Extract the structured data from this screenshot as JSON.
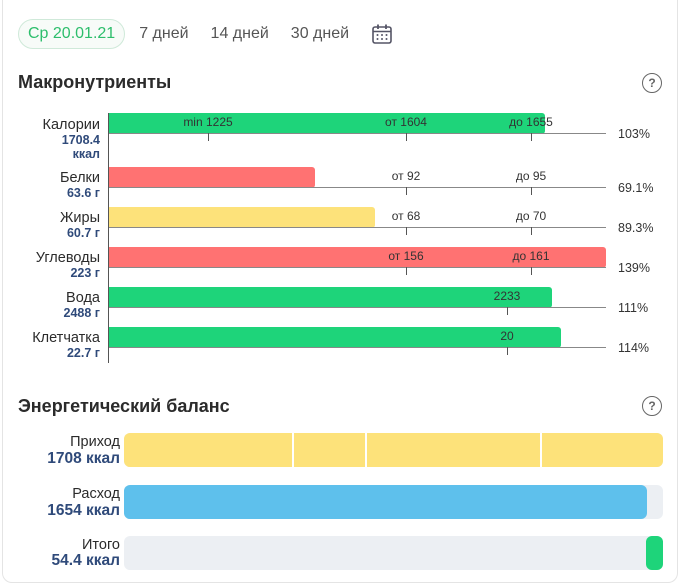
{
  "tabs": [
    {
      "label": "Ср 20.01.21",
      "active": true
    },
    {
      "label": "7 дней"
    },
    {
      "label": "14 дней"
    },
    {
      "label": "30 дней"
    }
  ],
  "macros": {
    "title": "Макронутриенты",
    "help": "?",
    "rows": [
      {
        "name": "Калории",
        "value": "1708.4",
        "unit": "ккал",
        "percent": "103%",
        "fill": 1.03,
        "color": "#1ed47a",
        "ticks": [
          {
            "label": "min 1225"
          },
          {
            "label": "от 1604"
          },
          {
            "label": "до 1655"
          }
        ]
      },
      {
        "name": "Белки",
        "value": "63.6 г",
        "percent": "69.1%",
        "fill": 0.691,
        "color": "#ff7272",
        "ticks": [
          {
            "label": "от 92"
          },
          {
            "label": "до 95"
          }
        ]
      },
      {
        "name": "Жиры",
        "value": "60.7 г",
        "percent": "89.3%",
        "fill": 0.893,
        "color": "#fde27a",
        "ticks": [
          {
            "label": "от 68"
          },
          {
            "label": "до 70"
          }
        ]
      },
      {
        "name": "Углеводы",
        "value": "223 г",
        "percent": "139%",
        "fill": 1.39,
        "color": "#ff7272",
        "ticks": [
          {
            "label": "от 156"
          },
          {
            "label": "до 161"
          }
        ]
      },
      {
        "name": "Вода",
        "value": "2488 г",
        "percent": "111%",
        "fill": 1.11,
        "color": "#1ed47a",
        "ticks": [
          {
            "label": "2233"
          }
        ]
      },
      {
        "name": "Клетчатка",
        "value": "22.7 г",
        "percent": "114%",
        "fill": 1.14,
        "color": "#1ed47a",
        "ticks": [
          {
            "label": "20"
          }
        ]
      }
    ]
  },
  "energy": {
    "title": "Энергетический баланс",
    "help": "?",
    "rows": [
      {
        "label": "Приход",
        "value": "1708 ккал",
        "fill": 1.0,
        "color": "#fde27a"
      },
      {
        "label": "Расход",
        "value": "1654 ккал",
        "fill": 0.97,
        "color": "#5ec0ec"
      },
      {
        "label": "Итого",
        "value": "54.4 ккал",
        "fill": 0.032,
        "color": "#1ed47a"
      }
    ]
  }
}
